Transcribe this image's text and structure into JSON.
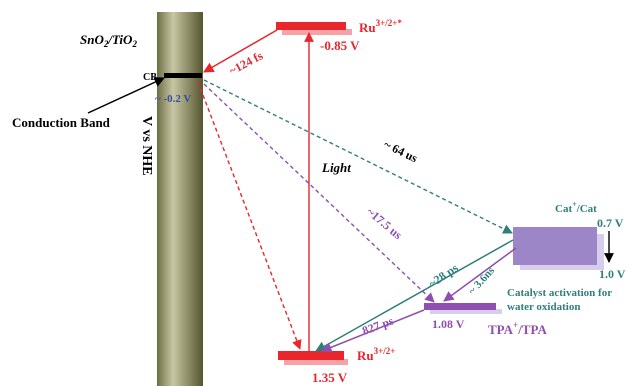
{
  "electrode": {
    "label_main": "SnO",
    "label_sub1": "2",
    "label_mid": "/TiO",
    "label_sub2": "2"
  },
  "axis_label": "V vs NHE",
  "conduction_band": {
    "tag": "CB",
    "callout": "Conduction Band",
    "potential": "~ -0.2 V"
  },
  "ru_excited": {
    "label_main": "Ru",
    "label_sup": "3+/2+*",
    "potential": "-0.85 V"
  },
  "ru_ground": {
    "label_main": "Ru",
    "label_sup": "3+/2+",
    "potential": "1.35 V"
  },
  "tpa": {
    "label_main": "TPA",
    "label_sup": "+",
    "label_rest": "/TPA",
    "potential": "1.08 V"
  },
  "catalyst": {
    "label_main": "Cat",
    "label_sup": "+",
    "label_rest": "/Cat",
    "potential_top": "0.7 V",
    "potential_bottom": "1.0 V",
    "activation_line1": "Catalyst activation for",
    "activation_line2": "water oxidation"
  },
  "transitions": {
    "injection": "~124 fs",
    "light": "Light",
    "recomb_cat": "~ 64 us",
    "recomb_tpa": "~17.5 us",
    "cat_to_ru": "~28 ps",
    "cat_to_tpa": "~ 3.6ns",
    "tpa_to_ru": "827 ps"
  },
  "colors": {
    "ru": "#e8262c",
    "ru_shadow": "#f5a3a6",
    "purple": "#8e4fb0",
    "teal": "#2e7f7a",
    "catalyst": "#9c86c8",
    "catalyst_shadow": "#d9cdee",
    "blue_text": "#3b4ea0"
  }
}
